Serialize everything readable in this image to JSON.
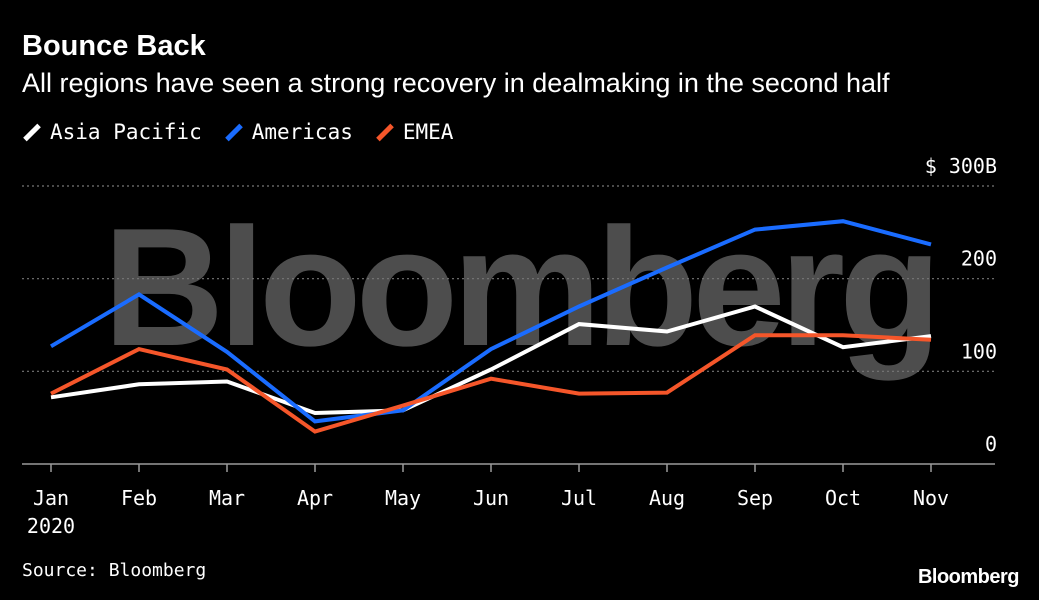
{
  "header": {
    "title": "Bounce Back",
    "subtitle": "All regions have seen a strong recovery in dealmaking in the second half"
  },
  "legend": [
    {
      "label": "Asia Pacific",
      "color": "#ffffff"
    },
    {
      "label": "Americas",
      "color": "#1a6cff"
    },
    {
      "label": "EMEA",
      "color": "#f5562a"
    }
  ],
  "footer": {
    "source": "Source: Bloomberg",
    "logo": "Bloomberg"
  },
  "watermark": "Bloomberg",
  "chart_data": {
    "type": "line",
    "title": "Bounce Back",
    "subtitle": "All regions have seen a strong recovery in dealmaking in the second half",
    "categories": [
      "Jan",
      "Feb",
      "Mar",
      "Apr",
      "May",
      "Jun",
      "Jul",
      "Aug",
      "Sep",
      "Oct",
      "Nov"
    ],
    "year_label": "2020",
    "y_ticks": [
      0,
      100,
      200,
      300
    ],
    "y_tick_labels": [
      "0",
      "100",
      "200",
      "$ 300B"
    ],
    "ylim": [
      0,
      300
    ],
    "grid": true,
    "series": [
      {
        "name": "Asia Pacific",
        "color": "#ffffff",
        "values": [
          72,
          86,
          89,
          55,
          58,
          102,
          151,
          143,
          170,
          126,
          138
        ]
      },
      {
        "name": "Americas",
        "color": "#1a6cff",
        "values": [
          127,
          183,
          121,
          46,
          58,
          124,
          170,
          212,
          253,
          262,
          237
        ]
      },
      {
        "name": "EMEA",
        "color": "#f5562a",
        "values": [
          76,
          124,
          102,
          35,
          63,
          92,
          76,
          77,
          139,
          139,
          134
        ]
      }
    ]
  }
}
